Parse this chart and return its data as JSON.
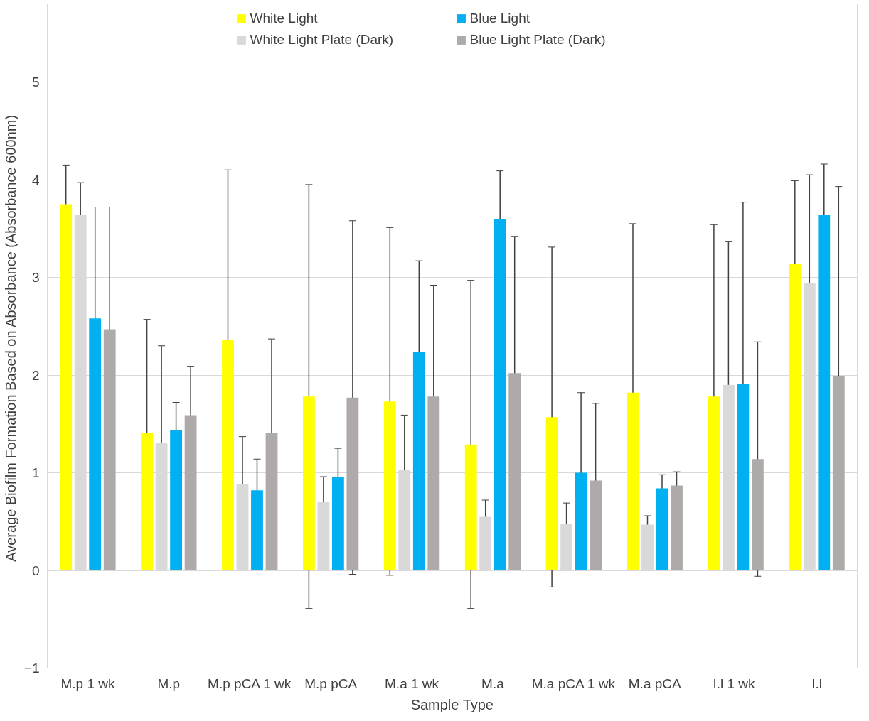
{
  "chart_data": {
    "type": "bar",
    "xlabel": "Sample Type",
    "ylabel": "Average Biofilm Formation Based on  Absorbance (Absorbance 600nm)",
    "categories": [
      "M.p 1 wk",
      "M.p",
      "M.p pCA 1 wk",
      "M.p pCA",
      "M.a 1 wk",
      "M.a",
      "M.a pCA 1 wk",
      "M.a pCA",
      "I.l  1 wk",
      "I.l"
    ],
    "series": [
      {
        "name": "White Light",
        "color": "#ffff00",
        "values": [
          3.75,
          1.41,
          2.36,
          1.78,
          1.73,
          1.29,
          1.57,
          1.82,
          1.78,
          3.14
        ],
        "errors": [
          0.4,
          1.16,
          1.74,
          2.17,
          1.78,
          1.68,
          1.74,
          1.73,
          1.76,
          0.85
        ]
      },
      {
        "name": "White Light Plate (Dark)",
        "color": "#d9d9d9",
        "values": [
          3.64,
          1.31,
          0.88,
          0.7,
          1.03,
          0.55,
          0.48,
          0.47,
          1.9,
          2.94
        ],
        "errors": [
          0.33,
          0.99,
          0.49,
          0.26,
          0.56,
          0.17,
          0.21,
          0.09,
          1.47,
          1.11
        ]
      },
      {
        "name": "Blue Light",
        "color": "#00b0f0",
        "values": [
          2.58,
          1.44,
          0.82,
          0.96,
          2.24,
          3.6,
          1.0,
          0.84,
          1.91,
          3.64
        ],
        "errors": [
          1.14,
          0.28,
          0.32,
          0.29,
          0.93,
          0.49,
          0.82,
          0.14,
          1.86,
          0.52
        ]
      },
      {
        "name": "Blue Light Plate (Dark)",
        "color": "#aeaaaa",
        "values": [
          2.47,
          1.59,
          1.41,
          1.77,
          1.78,
          2.02,
          0.92,
          0.87,
          1.14,
          1.99
        ],
        "errors": [
          1.25,
          0.5,
          0.96,
          1.81,
          1.14,
          1.4,
          0.79,
          0.14,
          1.2,
          1.94
        ]
      }
    ],
    "ylim": [
      -1,
      5.8
    ],
    "yticks": [
      -1,
      0,
      1,
      2,
      3,
      4,
      5
    ],
    "grid": "y",
    "legend": "top"
  }
}
